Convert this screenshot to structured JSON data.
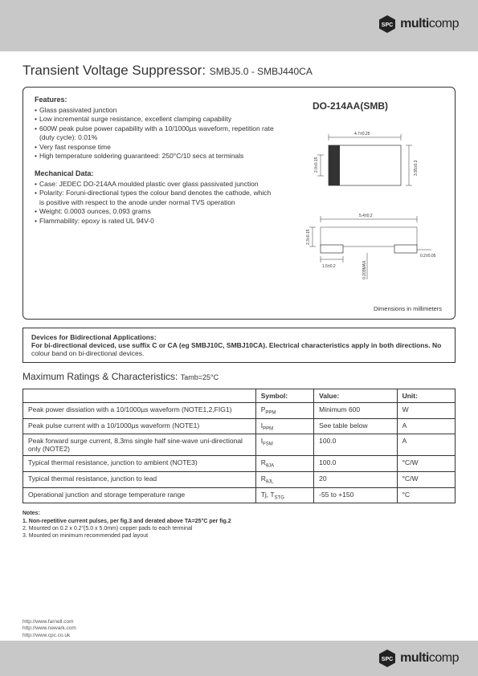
{
  "brand": {
    "name_bold": "multi",
    "name_light": "comp",
    "logo_color": "#222222"
  },
  "header": {
    "title_main": "Transient Voltage Suppressor:",
    "title_sub": "SMBJ5.0 - SMBJ440CA"
  },
  "features": {
    "heading": "Features:",
    "items": [
      "Glass passivated junction",
      "Low incremental surge resistance, excellent clamping capability",
      "600W peak pulse power capability with a 10/1000µs waveform, repetition rate (duty cycle): 0.01%",
      "Very fast response time",
      "High temperature soldering guaranteed: 250°C/10 secs at terminals"
    ]
  },
  "mechanical": {
    "heading": "Mechanical Data:",
    "items": [
      "Case: JEDEC DO-214AA moulded plastic over glass passivated junction",
      "Polarity: Foruni-directional types the colour band denotes the cathode, which is positive with respect to the anode under normal TVS operation",
      "Weight: 0.0003 ounces, 0.093 grams",
      "Flammability: epoxy is rated UL 94V-0"
    ]
  },
  "package": {
    "label": "DO-214AA(SMB)",
    "dims_note": "Dimensions in millimeters",
    "top_view": {
      "width_label": "4.7±0.25",
      "height_left": "2.0±0.15",
      "height_right": "3.95±0.3"
    },
    "bottom_view": {
      "width_label": "5.4±0.2",
      "height_label": "2.3±0.15",
      "pad_label": "1.5±0.2",
      "thickness_label": "0.2±0.05",
      "gap_label": "0.203MAX."
    }
  },
  "bidi": {
    "heading": "Devices for Bidirectional Applications:",
    "text_bold": "For bi-directional deviced, use suffix C or CA (eg SMBJ10C, SMBJ10CA).  Electrical characteristics apply in both directions.  No",
    "text_rest": "colour band on bi-directional devices."
  },
  "ratings": {
    "heading": "Maximum Ratings & Characteristics:",
    "heading_sub": "Tamb=25°C",
    "columns": [
      "",
      "Symbol:",
      "Value:",
      "Unit:"
    ],
    "rows": [
      {
        "desc": "Peak power dissiation with a 10/1000µs waveform (NOTE1,2,FIG1)",
        "sym": "P",
        "sub": "PPM",
        "val": "Minimum 600",
        "unit": "W"
      },
      {
        "desc": "Peak pulse current with a 10/1000µs waveform (NOTE1)",
        "sym": "I",
        "sub": "PPM",
        "val": "See table below",
        "unit": "A"
      },
      {
        "desc": "Peak forward surge current, 8.3ms single half sine-wave uni-directional only (NOTE2)",
        "sym": "I",
        "sub": "FSM",
        "val": "100.0",
        "unit": "A"
      },
      {
        "desc": "Typical thermal resistance, junction to ambient (NOTE3)",
        "sym": "R",
        "sub": "θJA",
        "val": "100.0",
        "unit": "°C/W"
      },
      {
        "desc": "Typical thermal resistance, junction to lead",
        "sym": "R",
        "sub": "θJL",
        "val": "20",
        "unit": "°C/W"
      },
      {
        "desc": "Operational junction and storage temperature range",
        "sym": "Tj, T",
        "sub": "STG",
        "val": "-55 to +150",
        "unit": "°C"
      }
    ]
  },
  "notes": {
    "heading": "Notes:",
    "items": [
      "1. Non-repetitive current pulses, per fig.3 and derated above TA=25°C per fig.2",
      "2. Mounted on 0.2 x 0.2\"(5.0 x 5.0mm) copper pads to each terminal",
      "3. Mounted on minimum recommended pad layout"
    ]
  },
  "footer_links": [
    "http://www.farnell.com",
    "http://www.newark.com",
    "http://www.cpc.co.uk"
  ]
}
